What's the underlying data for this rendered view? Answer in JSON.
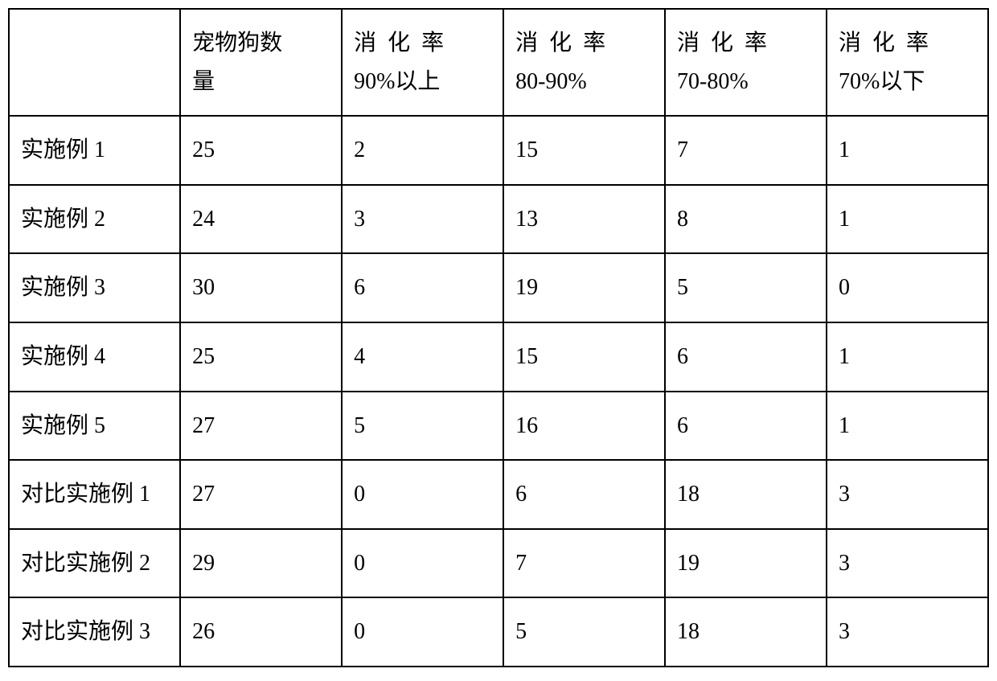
{
  "table": {
    "type": "table",
    "background_color": "#ffffff",
    "border_color": "#000000",
    "border_width": 2,
    "text_color": "#000000",
    "font_size": 28,
    "font_family": "SimSun",
    "cell_padding": 18,
    "columns": [
      {
        "label": "",
        "width": "17.5%"
      },
      {
        "label_line1": "宠物狗数",
        "label_line2": "量",
        "width": "16.5%"
      },
      {
        "label_line1": "消化率",
        "label_line2": "90%以上",
        "spaced": true,
        "width": "16.5%"
      },
      {
        "label_line1": "消化率",
        "label_line2": "80-90%",
        "spaced": true,
        "width": "16.5%"
      },
      {
        "label_line1": "消化率",
        "label_line2": "70-80%",
        "spaced": true,
        "width": "16.5%"
      },
      {
        "label_line1": "消化率",
        "label_line2": "70%以下",
        "spaced": true,
        "width": "16.5%"
      }
    ],
    "rows": [
      {
        "label": "实施例 1",
        "values": [
          "25",
          "2",
          "15",
          "7",
          "1"
        ]
      },
      {
        "label": "实施例 2",
        "values": [
          "24",
          "3",
          "13",
          "8",
          "1"
        ]
      },
      {
        "label": "实施例 3",
        "values": [
          "30",
          "6",
          "19",
          "5",
          "0"
        ]
      },
      {
        "label": "实施例 4",
        "values": [
          "25",
          "4",
          "15",
          "6",
          "1"
        ]
      },
      {
        "label": "实施例 5",
        "values": [
          "27",
          "5",
          "16",
          "6",
          "1"
        ]
      },
      {
        "label": "对比实施例 1",
        "values": [
          "27",
          "0",
          "6",
          "18",
          "3"
        ]
      },
      {
        "label": "对比实施例 2",
        "values": [
          "29",
          "0",
          "7",
          "19",
          "3"
        ]
      },
      {
        "label": "对比实施例 3",
        "values": [
          "26",
          "0",
          "5",
          "18",
          "3"
        ]
      }
    ]
  }
}
